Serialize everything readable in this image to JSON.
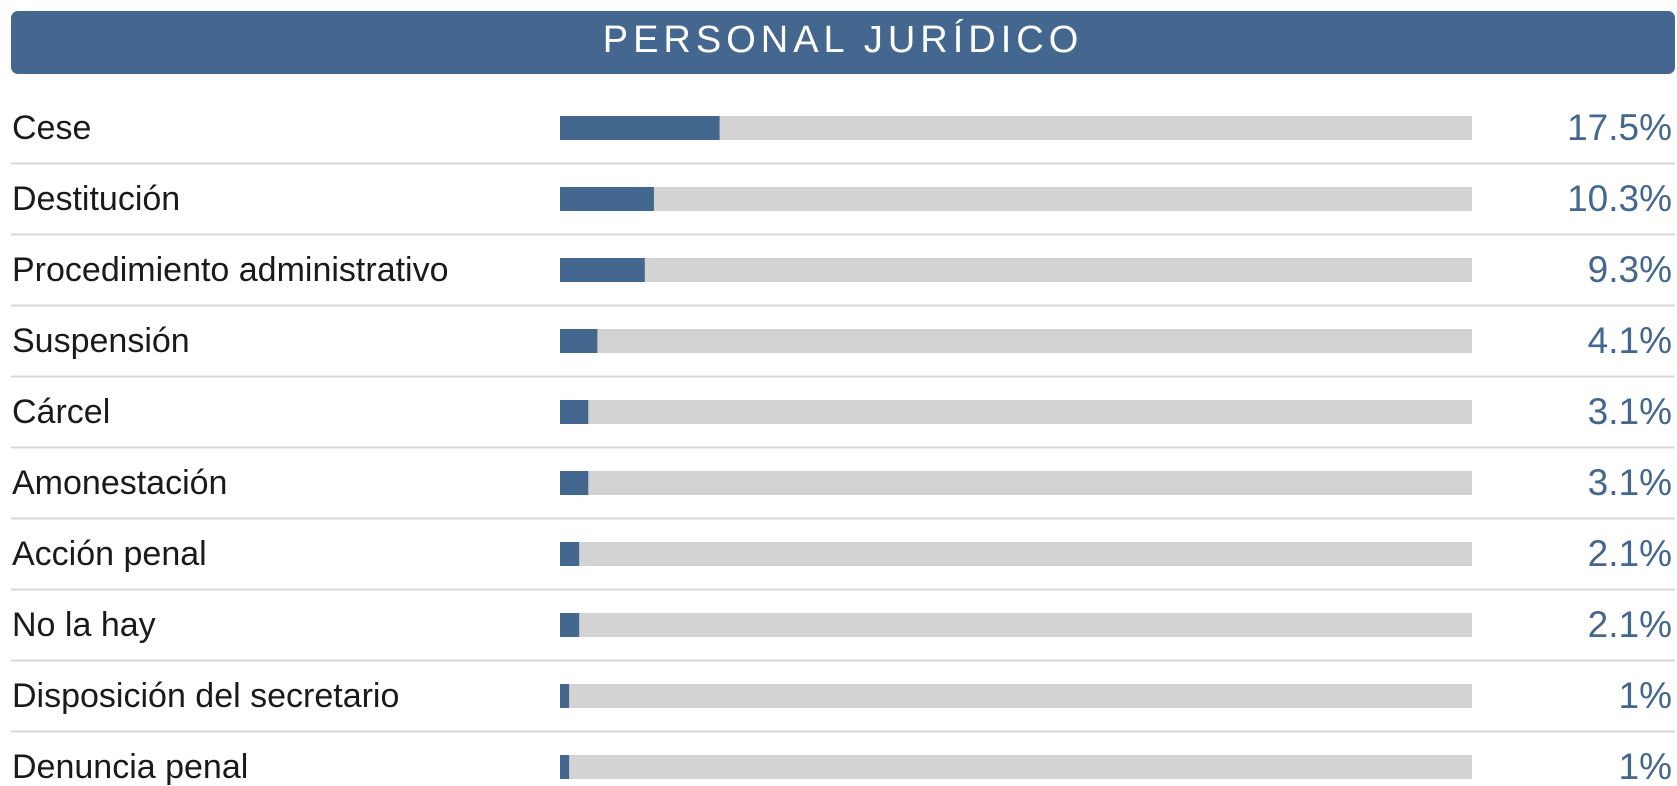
{
  "chart_data": {
    "type": "bar",
    "orientation": "horizontal",
    "title": "PERSONAL JURÍDICO",
    "categories": [
      "Cese",
      "Destitución",
      "Procedimiento administrativo",
      "Suspensión",
      "Cárcel",
      "Amonestación",
      "Acción penal",
      "No la hay",
      "Disposición del secretario",
      "Denuncia penal"
    ],
    "values": [
      17.5,
      10.3,
      9.3,
      4.1,
      3.1,
      3.1,
      2.1,
      2.1,
      1,
      1
    ],
    "value_labels": [
      "17.5%",
      "10.3%",
      "9.3%",
      "4.1%",
      "3.1%",
      "3.1%",
      "2.1%",
      "2.1%",
      "1%",
      "1%"
    ],
    "color": "#44678f",
    "track_color": "#d3d3d3",
    "xlim": [
      0,
      100
    ]
  }
}
